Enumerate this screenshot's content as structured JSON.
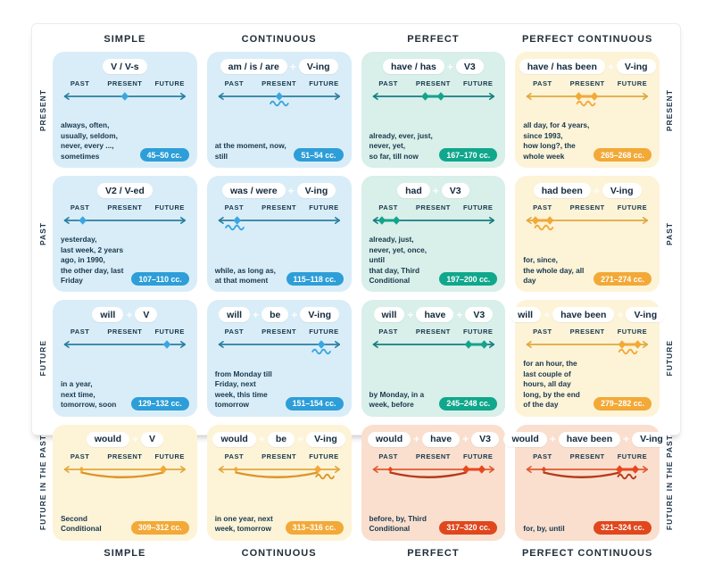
{
  "plus_sign": "+",
  "columns": [
    "SIMPLE",
    "CONTINUOUS",
    "PERFECT",
    "PERFECT CONTINUOUS"
  ],
  "rows": [
    "PRESENT",
    "PAST",
    "FUTURE",
    "FUTURE IN THE PAST"
  ],
  "timeline_labels": [
    "PAST",
    "PRESENT",
    "FUTURE"
  ],
  "themes": {
    "blue": {
      "bg": "#d9edf8",
      "line": "#2a7fa0",
      "accent": "#3aa6e0",
      "badge": "#2d9ed8",
      "arc": "#2a7fa0"
    },
    "teal": {
      "bg": "#d9efe9",
      "line": "#157f82",
      "accent": "#14a38c",
      "badge": "#10a78c",
      "arc": "#157f82"
    },
    "amber": {
      "bg": "#fdf3d7",
      "line": "#dfa93e",
      "accent": "#f2a937",
      "badge": "#f2a937",
      "arc": "#dd9527"
    },
    "red": {
      "bg": "#fadfce",
      "line": "#e05b32",
      "accent": "#e8481e",
      "badge": "#e0471d",
      "arc": "#b53a1b"
    }
  },
  "cards": [
    {
      "tense": "Present Simple",
      "theme": "blue",
      "formula": [
        "V / V-s"
      ],
      "usage": "always, often, usually, seldom,\nnever, every ..., sometimes",
      "badge": "45–50 cc.",
      "timeline": {
        "diamonds": [
          50
        ],
        "small": [],
        "link": null,
        "wavy": null,
        "arc": null
      }
    },
    {
      "tense": "Present Continuous",
      "theme": "blue",
      "formula": [
        "am / is / are",
        "V-ing"
      ],
      "usage": "at the moment, now, still",
      "badge": "51–54 cc.",
      "timeline": {
        "diamonds": [
          50
        ],
        "small": [],
        "link": null,
        "wavy": 50,
        "arc": null
      }
    },
    {
      "tense": "Present Perfect",
      "theme": "teal",
      "formula": [
        "have / has",
        "V3"
      ],
      "usage": "already, ever, just, never, yet,\nso far, till now",
      "badge": "167–170 cc.",
      "timeline": {
        "diamonds": [
          43,
          56
        ],
        "small": [],
        "link": [
          43,
          56
        ],
        "wavy": null,
        "arc": null
      }
    },
    {
      "tense": "Present Perfect Continuous",
      "theme": "amber",
      "formula": [
        "have / has been",
        "V-ing"
      ],
      "usage": "all day, for 4 years, since 1993,\nhow long?, the whole week",
      "badge": "265–268 cc.",
      "timeline": {
        "diamonds": [
          43,
          56
        ],
        "small": [],
        "link": [
          43,
          56
        ],
        "wavy": 49,
        "arc": null
      }
    },
    {
      "tense": "Past Simple",
      "theme": "blue",
      "formula": [
        "V2 / V-ed"
      ],
      "usage": "yesterday,\nlast week, 2 years ago, in 1990,\nthe other day, last Friday",
      "badge": "107–110 cc.",
      "timeline": {
        "diamonds": [
          15
        ],
        "small": [],
        "link": null,
        "wavy": null,
        "arc": null
      }
    },
    {
      "tense": "Past Continuous",
      "theme": "blue",
      "formula": [
        "was / were",
        "V-ing"
      ],
      "usage": "while, as long as, at that moment",
      "badge": "115–118 cc.",
      "timeline": {
        "diamonds": [
          15
        ],
        "small": [],
        "link": null,
        "wavy": 13,
        "arc": null
      }
    },
    {
      "tense": "Past Perfect",
      "theme": "teal",
      "formula": [
        "had",
        "V3"
      ],
      "usage": "already, just, never, yet, once, until\nthat day, Third Conditional",
      "badge": "197–200 cc.",
      "timeline": {
        "diamonds": [
          7,
          19
        ],
        "small": [],
        "link": [
          7,
          19
        ],
        "wavy": null,
        "arc": null
      }
    },
    {
      "tense": "Past Perfect Continuous",
      "theme": "amber",
      "formula": [
        "had been",
        "V-ing"
      ],
      "usage": "for, since,\nthe whole day, all day",
      "badge": "271–274 cc.",
      "timeline": {
        "diamonds": [
          7,
          19
        ],
        "small": [],
        "link": [
          7,
          19
        ],
        "wavy": 14,
        "arc": null
      }
    },
    {
      "tense": "Future Simple",
      "theme": "blue",
      "formula": [
        "will",
        "V"
      ],
      "usage": "in a year,\nnext time, tomorrow, soon",
      "badge": "129–132 cc.",
      "timeline": {
        "diamonds": [
          85
        ],
        "small": [],
        "link": null,
        "wavy": null,
        "arc": null
      }
    },
    {
      "tense": "Future Continuous",
      "theme": "blue",
      "formula": [
        "will",
        "be",
        "V-ing"
      ],
      "usage": "from Monday till Friday, next\nweek, this time tomorrow",
      "badge": "151–154 cc.",
      "timeline": {
        "diamonds": [
          85
        ],
        "small": [],
        "link": null,
        "wavy": 85,
        "arc": null
      }
    },
    {
      "tense": "Future Perfect",
      "theme": "teal",
      "formula": [
        "will",
        "have",
        "V3"
      ],
      "usage": "by Monday, in a week, before",
      "badge": "245–248 cc.",
      "timeline": {
        "diamonds": [
          79,
          92
        ],
        "small": [],
        "link": [
          79,
          92
        ],
        "wavy": null,
        "arc": null
      }
    },
    {
      "tense": "Future Perfect Continuous",
      "theme": "amber",
      "formula": [
        "will",
        "have been",
        "V-ing"
      ],
      "usage": "for an hour, the last couple of\nhours, all day long, by the end\nof the day",
      "badge": "279–282 cc.",
      "timeline": {
        "diamonds": [
          79,
          92
        ],
        "small": [],
        "link": [
          79,
          92
        ],
        "wavy": 84,
        "arc": null
      }
    },
    {
      "tense": "Future in the Past Simple",
      "theme": "amber",
      "formula": [
        "would",
        "V"
      ],
      "usage": "Second Conditional",
      "badge": "309–312 cc.",
      "timeline": {
        "diamonds": [
          14,
          82
        ],
        "small": [
          14
        ],
        "link": null,
        "wavy": null,
        "arc": [
          14,
          82
        ]
      }
    },
    {
      "tense": "Future in the Past Continuous",
      "theme": "amber",
      "formula": [
        "would",
        "be",
        "V-ing"
      ],
      "usage": "in one year, next week, tomorrow",
      "badge": "313–316 cc.",
      "timeline": {
        "diamonds": [
          14,
          82
        ],
        "small": [
          14
        ],
        "link": null,
        "wavy": 88,
        "arc": [
          14,
          82
        ]
      }
    },
    {
      "tense": "Future in the Past Perfect",
      "theme": "red",
      "formula": [
        "would",
        "have",
        "V3"
      ],
      "usage": "before, by, Third Conditional",
      "badge": "317–320 cc.",
      "timeline": {
        "diamonds": [
          14,
          77,
          90
        ],
        "small": [
          14
        ],
        "link": [
          77,
          90
        ],
        "wavy": null,
        "arc": [
          14,
          77
        ]
      }
    },
    {
      "tense": "Future in the Past Perfect Continuous",
      "theme": "red",
      "formula": [
        "would",
        "have been",
        "V-ing"
      ],
      "usage": "for, by, until",
      "badge": "321–324 cc.",
      "timeline": {
        "diamonds": [
          14,
          77,
          90
        ],
        "small": [
          14
        ],
        "link": [
          77,
          90
        ],
        "wavy": 83,
        "arc": [
          14,
          77
        ]
      }
    }
  ]
}
